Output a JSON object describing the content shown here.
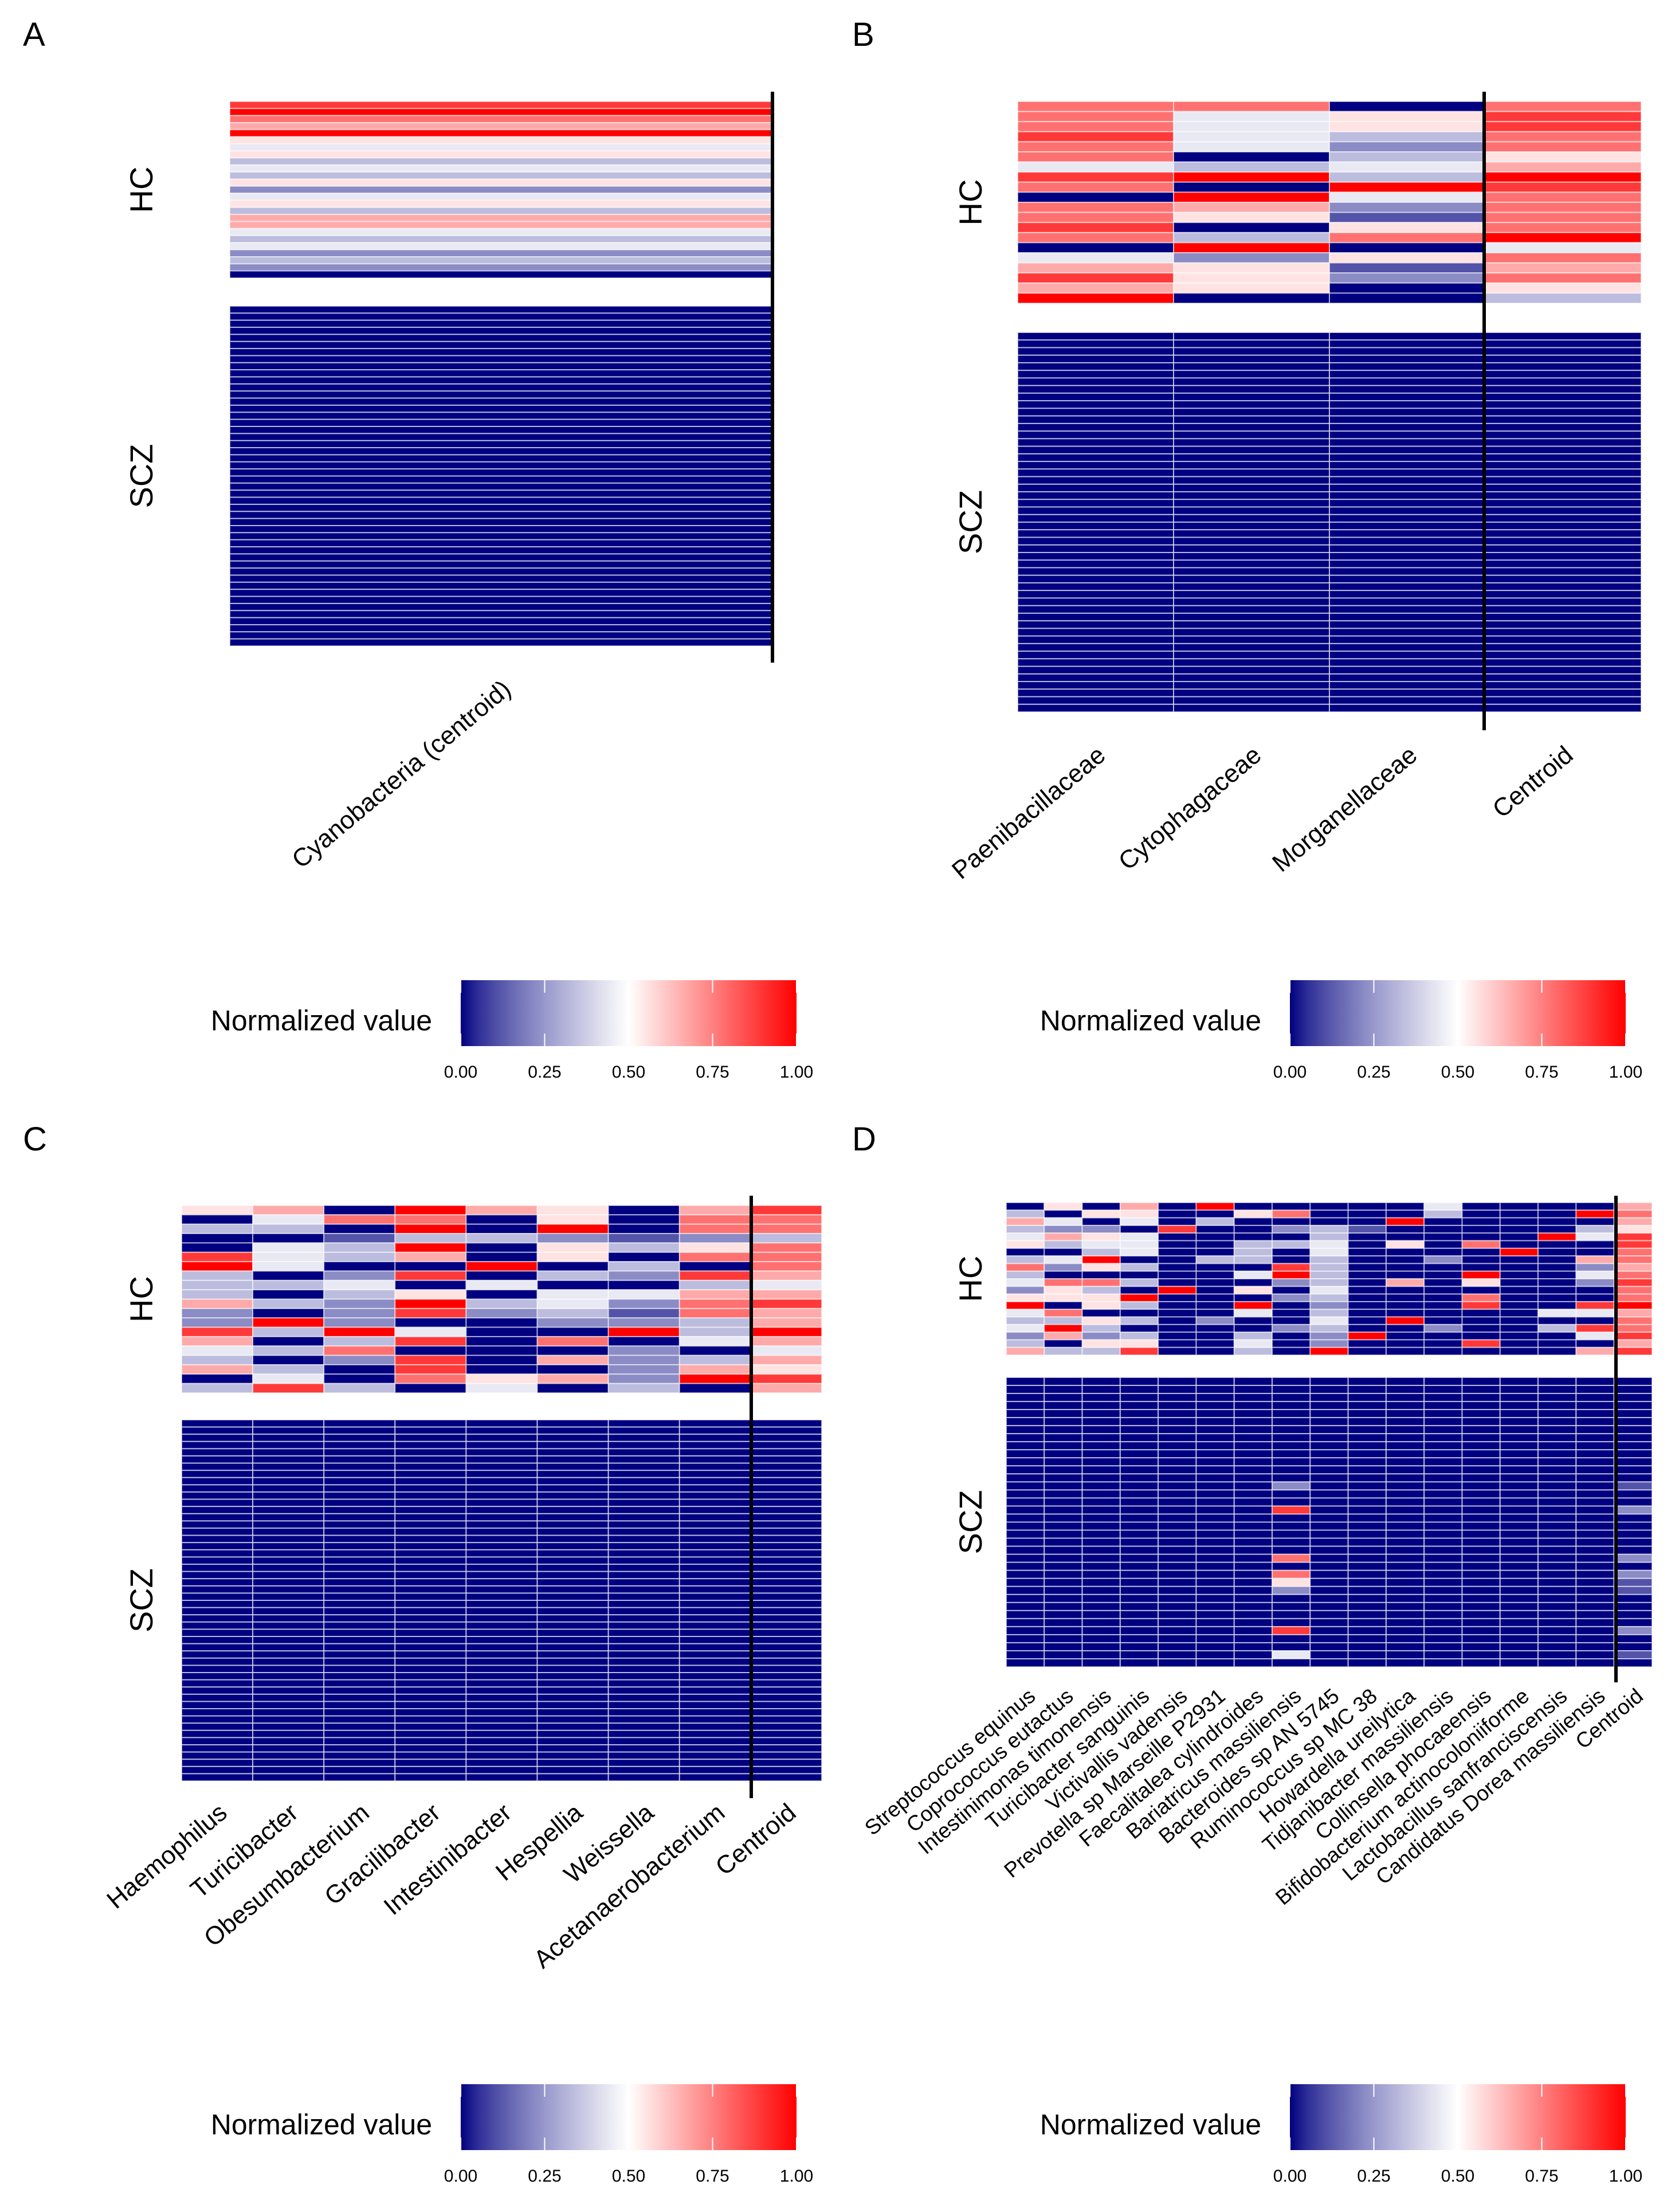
{
  "chart_data": [
    {
      "panel": "A",
      "type": "heatmap",
      "groups": [
        "HC",
        "SCZ"
      ],
      "columns": [
        "Cyanobacteria (centroid)"
      ],
      "centroid_separator_after_column": 1,
      "value_encoding": "digit d means d/9",
      "hc_rows": [
        "8",
        "9",
        "7",
        "6",
        "9",
        "5",
        "4",
        "5",
        "3",
        "4",
        "3",
        "5",
        "2",
        "4",
        "5",
        "3",
        "6",
        "6",
        "4",
        "3",
        "4",
        "2",
        "3",
        "2",
        "0"
      ],
      "scz_row_count": 48,
      "scz_default": 0,
      "scz_nonzero": [],
      "legend": {
        "title": "Normalized value",
        "ticks": [
          "0.00",
          "0.25",
          "0.50",
          "0.75",
          "1.00"
        ],
        "low_color": "#000080",
        "mid_color": "#ffffff",
        "high_color": "#ff0000"
      }
    },
    {
      "panel": "B",
      "type": "heatmap",
      "groups": [
        "HC",
        "SCZ"
      ],
      "columns": [
        "Paenibacillaceae",
        "Cytophagaceae",
        "Morganellaceae",
        "Centroid"
      ],
      "centroid_separator_after_column": 3,
      "value_encoding": "digit d means d/9",
      "hc_rows": [
        "7707",
        "7458",
        "7458",
        "8437",
        "7427",
        "7035",
        "4346",
        "8939",
        "7098",
        "0947",
        "7627",
        "7517",
        "8057",
        "7379",
        "0904",
        "4257",
        "6516",
        "8527",
        "6505",
        "9003"
      ],
      "scz_row_count": 50,
      "scz_default": 0,
      "scz_nonzero": [],
      "legend": {
        "title": "Normalized value",
        "ticks": [
          "0.00",
          "0.25",
          "0.50",
          "0.75",
          "1.00"
        ],
        "low_color": "#000080",
        "mid_color": "#ffffff",
        "high_color": "#ff0000"
      }
    },
    {
      "panel": "C",
      "type": "heatmap",
      "groups": [
        "HC",
        "SCZ"
      ],
      "columns": [
        "Haemophilus",
        "Turicibacter",
        "Obesumbacterium",
        "Gracilibacter",
        "Intestinibacter",
        "Hespellia",
        "Weissella",
        "Acetanaerobacterium",
        "Centroid"
      ],
      "centroid_separator_after_column": 8,
      "value_encoding": "digit d means d/9",
      "hc_rows": [
        "560965068",
        "047705077",
        "330909077",
        "001332123",
        "043905357",
        "843605077",
        "940090307",
        "302803286",
        "334040034",
        "303504466",
        "632934278",
        "202823176",
        "292002236",
        "839400939",
        "603807046",
        "437000204",
        "302806236",
        "630800265",
        "040756298",
        "383040306"
      ],
      "scz_row_count": 50,
      "scz_default": 0,
      "scz_nonzero": [],
      "legend": {
        "title": "Normalized value",
        "ticks": [
          "0.00",
          "0.25",
          "0.50",
          "0.75",
          "1.00"
        ],
        "low_color": "#000080",
        "mid_color": "#ffffff",
        "high_color": "#ff0000"
      }
    },
    {
      "panel": "D",
      "type": "heatmap",
      "groups": [
        "HC",
        "SCZ"
      ],
      "columns": [
        "Streptococcus equinus",
        "Coprococcus eutactus",
        "Intestinimonas timonensis",
        "Turicibacter sanguinis",
        "Victivallis vadensis",
        "Prevotella sp Marseille P2931",
        "Faecalitalea cylindroides",
        "Bariatricus massiliensis",
        "Bacteroides sp AN 5745",
        "Ruminococcus sp MC 38",
        "Howardella ureilytica",
        "Tidjanibacter massiliensis",
        "Collinsella phocaeensis",
        "Bifidobacterium actinocoloniiforme",
        "Lactobacillus sanfranciscensis",
        "Candidatus Dorea massiliensis",
        "Centroid"
      ],
      "centroid_separator_after_column": 16,
      "value_encoding": "digit d means d/9",
      "hc_rows": [
        "05060900000400006",
        "30550057000300097",
        "64040300009000006",
        "32208002310000035",
        "46540000300000948",
        "53440033405070008",
        "00340030400009007",
        "34900330300200067",
        "72530008300000026",
        "30000049300090047",
        "47730002306050028",
        "25309050400000007",
        "55590002300070007",
        "90530090200080089",
        "47000040300000446",
        "33530200409000007",
        "49300002300200387",
        "26230030290000048",
        "30550040200080006",
        "63380030900000068"
      ],
      "scz_row_count": 36,
      "scz_default": 0,
      "scz_nonzero": [
        [
          13,
          7,
          2
        ],
        [
          16,
          7,
          8
        ],
        [
          22,
          7,
          7
        ],
        [
          24,
          7,
          7
        ],
        [
          25,
          7,
          5
        ],
        [
          26,
          7,
          2
        ],
        [
          31,
          7,
          8
        ],
        [
          34,
          7,
          4
        ],
        [
          13,
          16,
          1
        ],
        [
          16,
          16,
          2
        ],
        [
          22,
          16,
          2
        ],
        [
          24,
          16,
          2
        ],
        [
          25,
          16,
          1
        ],
        [
          26,
          16,
          1
        ],
        [
          31,
          16,
          2
        ],
        [
          34,
          16,
          1
        ]
      ],
      "legend": {
        "title": "Normalized value",
        "ticks": [
          "0.00",
          "0.25",
          "0.50",
          "0.75",
          "1.00"
        ],
        "low_color": "#000080",
        "mid_color": "#ffffff",
        "high_color": "#ff0000"
      }
    }
  ]
}
